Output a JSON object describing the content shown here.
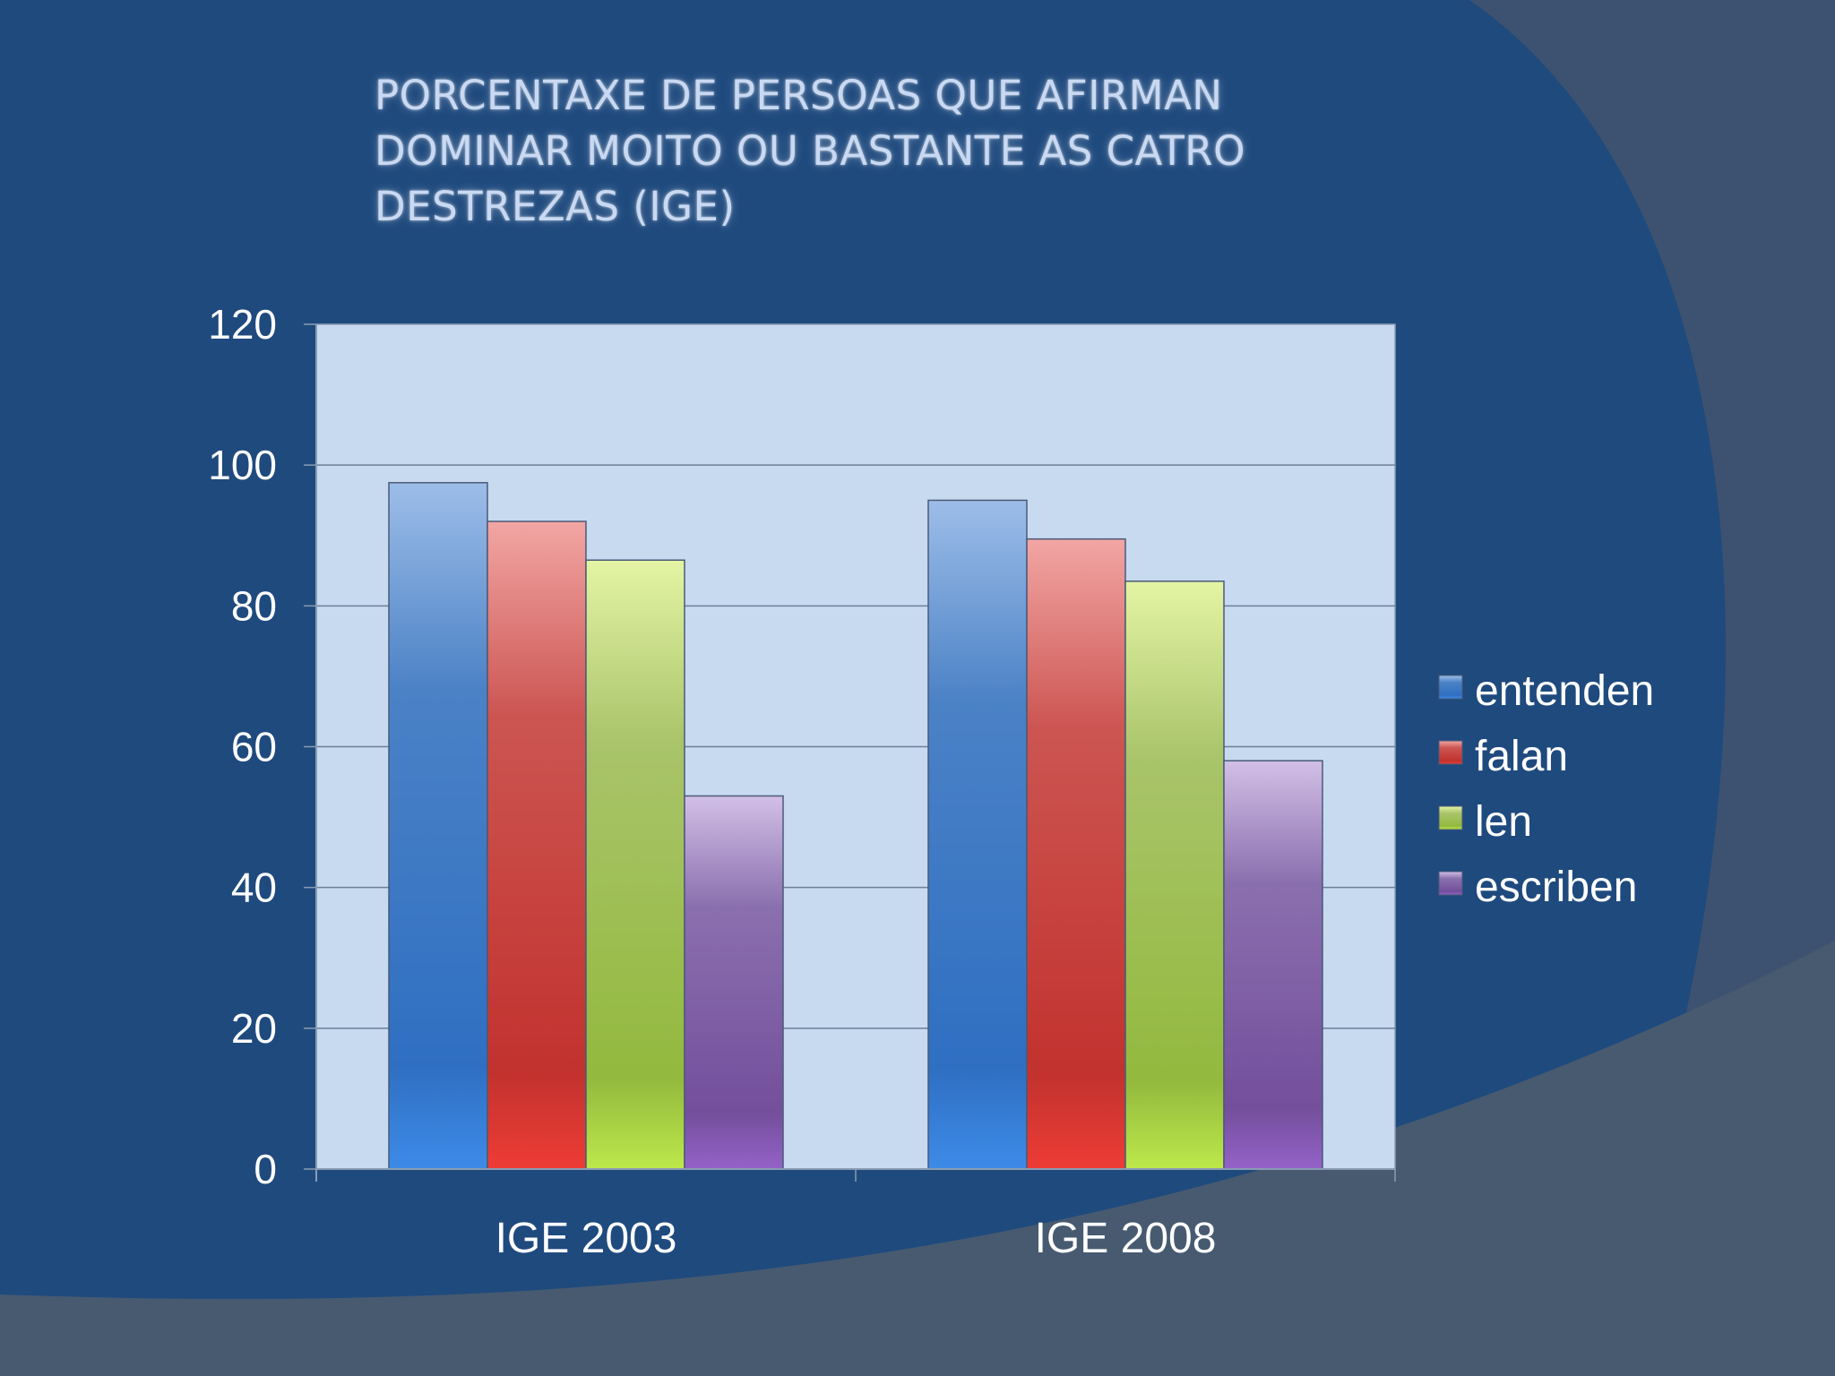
{
  "slide": {
    "title": "PORCENTAXE DE PERSOAS QUE AFIRMAN\nDOMINAR MOITO OU BASTANTE AS CATRO\nDESTREZAS (IGE)"
  },
  "colors": {
    "background": "#1f4a7e",
    "plot_area": "#c8daf0",
    "entenden": "#3b78c8",
    "falan": "#cf3a36",
    "len": "#9cbf48",
    "escriben": "#7b58a4"
  },
  "chart_data": {
    "type": "bar",
    "categories": [
      "IGE 2003",
      "IGE 2008"
    ],
    "series": [
      {
        "name": "entenden",
        "values": [
          97.5,
          95
        ]
      },
      {
        "name": "falan",
        "values": [
          92,
          89.5
        ]
      },
      {
        "name": "len",
        "values": [
          86.5,
          83.5
        ]
      },
      {
        "name": "escriben",
        "values": [
          53,
          58
        ]
      }
    ],
    "ylim": [
      0,
      120
    ],
    "yticks": [
      "0",
      "20",
      "40",
      "60",
      "80",
      "100",
      "120"
    ],
    "grid": true,
    "legend": "right"
  }
}
